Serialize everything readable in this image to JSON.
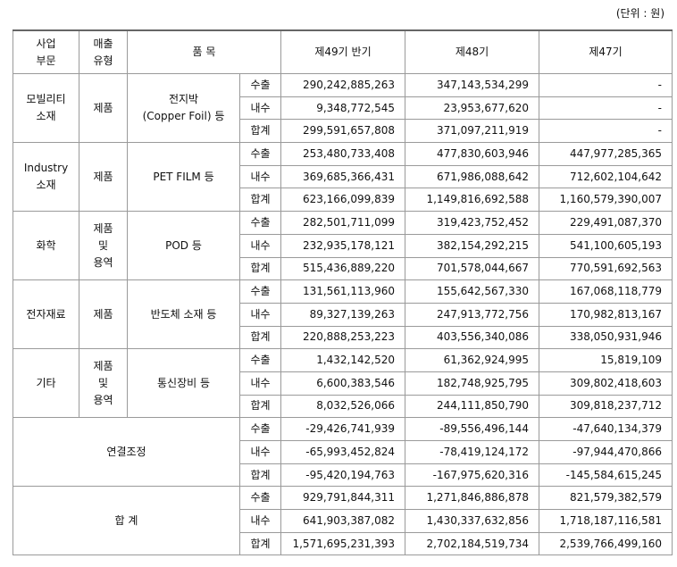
{
  "unit_note": "(단위 : 원)",
  "header": {
    "segment": [
      "사업",
      "부문"
    ],
    "sales_type": [
      "매출",
      "유형"
    ],
    "item": "품 목",
    "periods": [
      "제49기 반기",
      "제48기",
      "제47기"
    ]
  },
  "segments": [
    {
      "segment": [
        "모빌리티",
        "소재"
      ],
      "sales_type": [
        "제품"
      ],
      "item": [
        "전지박",
        "(Copper Foil) 등"
      ],
      "rows": [
        {
          "kind": "수출",
          "values": [
            "290,242,885,263",
            "347,143,534,299",
            "-"
          ]
        },
        {
          "kind": "내수",
          "values": [
            "9,348,772,545",
            "23,953,677,620",
            "-"
          ]
        },
        {
          "kind": "합계",
          "values": [
            "299,591,657,808",
            "371,097,211,919",
            "-"
          ]
        }
      ]
    },
    {
      "segment": [
        "Industry",
        "소재"
      ],
      "sales_type": [
        "제품"
      ],
      "item": [
        "PET FILM 등"
      ],
      "rows": [
        {
          "kind": "수출",
          "values": [
            "253,480,733,408",
            "477,830,603,946",
            "447,977,285,365"
          ]
        },
        {
          "kind": "내수",
          "values": [
            "369,685,366,431",
            "671,986,088,642",
            "712,602,104,642"
          ]
        },
        {
          "kind": "합계",
          "values": [
            "623,166,099,839",
            "1,149,816,692,588",
            "1,160,579,390,007"
          ]
        }
      ]
    },
    {
      "segment": [
        "화학"
      ],
      "sales_type": [
        "제품",
        "및",
        "용역"
      ],
      "item": [
        "POD 등"
      ],
      "rows": [
        {
          "kind": "수출",
          "values": [
            "282,501,711,099",
            "319,423,752,452",
            "229,491,087,370"
          ]
        },
        {
          "kind": "내수",
          "values": [
            "232,935,178,121",
            "382,154,292,215",
            "541,100,605,193"
          ]
        },
        {
          "kind": "합계",
          "values": [
            "515,436,889,220",
            "701,578,044,667",
            "770,591,692,563"
          ]
        }
      ]
    },
    {
      "segment": [
        "전자재료"
      ],
      "sales_type": [
        "제품"
      ],
      "item": [
        "반도체 소재 등"
      ],
      "rows": [
        {
          "kind": "수출",
          "values": [
            "131,561,113,960",
            "155,642,567,330",
            "167,068,118,779"
          ]
        },
        {
          "kind": "내수",
          "values": [
            "89,327,139,263",
            "247,913,772,756",
            "170,982,813,167"
          ]
        },
        {
          "kind": "합계",
          "values": [
            "220,888,253,223",
            "403,556,340,086",
            "338,050,931,946"
          ]
        }
      ]
    },
    {
      "segment": [
        "기타"
      ],
      "sales_type": [
        "제품",
        "및",
        "용역"
      ],
      "item": [
        "통신장비 등"
      ],
      "rows": [
        {
          "kind": "수출",
          "values": [
            "1,432,142,520",
            "61,362,924,995",
            "15,819,109"
          ]
        },
        {
          "kind": "내수",
          "values": [
            "6,600,383,546",
            "182,748,925,795",
            "309,802,418,603"
          ]
        },
        {
          "kind": "합계",
          "values": [
            "8,032,526,066",
            "244,111,850,790",
            "309,818,237,712"
          ]
        }
      ]
    },
    {
      "segment": [
        "연결조정"
      ],
      "rows": [
        {
          "kind": "수출",
          "values": [
            "-29,426,741,939",
            "-89,556,496,144",
            "-47,640,134,379"
          ]
        },
        {
          "kind": "내수",
          "values": [
            "-65,993,452,824",
            "-78,419,124,172",
            "-97,944,470,866"
          ]
        },
        {
          "kind": "합계",
          "values": [
            "-95,420,194,763",
            "-167,975,620,316",
            "-145,584,615,245"
          ]
        }
      ]
    },
    {
      "segment": [
        "합 계"
      ],
      "rows": [
        {
          "kind": "수출",
          "values": [
            "929,791,844,311",
            "1,271,846,886,878",
            "821,579,382,579"
          ]
        },
        {
          "kind": "내수",
          "values": [
            "641,903,387,082",
            "1,430,337,632,856",
            "1,718,187,116,581"
          ]
        },
        {
          "kind": "합계",
          "values": [
            "1,571,695,231,393",
            "2,702,184,519,734",
            "2,539,766,499,160"
          ]
        }
      ]
    }
  ]
}
